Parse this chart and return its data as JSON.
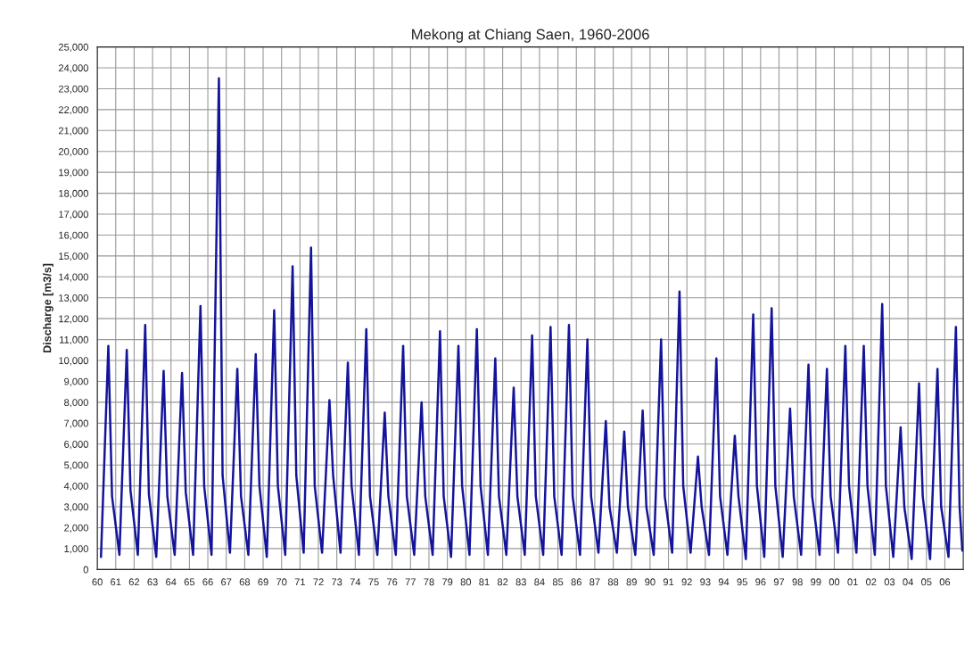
{
  "chart_data": {
    "type": "line",
    "title": "Mekong at Chiang Saen, 1960-2006",
    "ylabel": "Discharge [m3/s]",
    "xlim": [
      1960,
      2007
    ],
    "ylim": [
      0,
      25000
    ],
    "xticks": [
      {
        "value": 1960,
        "label": "60"
      },
      {
        "value": 1961,
        "label": "61"
      },
      {
        "value": 1962,
        "label": "62"
      },
      {
        "value": 1963,
        "label": "63"
      },
      {
        "value": 1964,
        "label": "64"
      },
      {
        "value": 1965,
        "label": "65"
      },
      {
        "value": 1966,
        "label": "66"
      },
      {
        "value": 1967,
        "label": "67"
      },
      {
        "value": 1968,
        "label": "68"
      },
      {
        "value": 1969,
        "label": "69"
      },
      {
        "value": 1970,
        "label": "70"
      },
      {
        "value": 1971,
        "label": "71"
      },
      {
        "value": 1972,
        "label": "72"
      },
      {
        "value": 1973,
        "label": "73"
      },
      {
        "value": 1974,
        "label": "74"
      },
      {
        "value": 1975,
        "label": "75"
      },
      {
        "value": 1976,
        "label": "76"
      },
      {
        "value": 1977,
        "label": "77"
      },
      {
        "value": 1978,
        "label": "78"
      },
      {
        "value": 1979,
        "label": "79"
      },
      {
        "value": 1980,
        "label": "80"
      },
      {
        "value": 1981,
        "label": "81"
      },
      {
        "value": 1982,
        "label": "82"
      },
      {
        "value": 1983,
        "label": "83"
      },
      {
        "value": 1984,
        "label": "84"
      },
      {
        "value": 1985,
        "label": "85"
      },
      {
        "value": 1986,
        "label": "86"
      },
      {
        "value": 1987,
        "label": "87"
      },
      {
        "value": 1988,
        "label": "88"
      },
      {
        "value": 1989,
        "label": "89"
      },
      {
        "value": 1990,
        "label": "90"
      },
      {
        "value": 1991,
        "label": "91"
      },
      {
        "value": 1992,
        "label": "92"
      },
      {
        "value": 1993,
        "label": "93"
      },
      {
        "value": 1994,
        "label": "94"
      },
      {
        "value": 1995,
        "label": "95"
      },
      {
        "value": 1996,
        "label": "96"
      },
      {
        "value": 1997,
        "label": "97"
      },
      {
        "value": 1998,
        "label": "98"
      },
      {
        "value": 1999,
        "label": "99"
      },
      {
        "value": 2000,
        "label": "00"
      },
      {
        "value": 2001,
        "label": "01"
      },
      {
        "value": 2002,
        "label": "02"
      },
      {
        "value": 2003,
        "label": "03"
      },
      {
        "value": 2004,
        "label": "04"
      },
      {
        "value": 2005,
        "label": "05"
      },
      {
        "value": 2006,
        "label": "06"
      }
    ],
    "yticks": [
      {
        "value": 0,
        "label": "0"
      },
      {
        "value": 1000,
        "label": "1,000"
      },
      {
        "value": 2000,
        "label": "2,000"
      },
      {
        "value": 3000,
        "label": "3,000"
      },
      {
        "value": 4000,
        "label": "4,000"
      },
      {
        "value": 5000,
        "label": "5,000"
      },
      {
        "value": 6000,
        "label": "6,000"
      },
      {
        "value": 7000,
        "label": "7,000"
      },
      {
        "value": 8000,
        "label": "8,000"
      },
      {
        "value": 9000,
        "label": "9,000"
      },
      {
        "value": 10000,
        "label": "10,000"
      },
      {
        "value": 11000,
        "label": "11,000"
      },
      {
        "value": 12000,
        "label": "12,000"
      },
      {
        "value": 13000,
        "label": "13,000"
      },
      {
        "value": 14000,
        "label": "14,000"
      },
      {
        "value": 15000,
        "label": "15,000"
      },
      {
        "value": 16000,
        "label": "16,000"
      },
      {
        "value": 17000,
        "label": "17,000"
      },
      {
        "value": 18000,
        "label": "18,000"
      },
      {
        "value": 19000,
        "label": "19,000"
      },
      {
        "value": 20000,
        "label": "20,000"
      },
      {
        "value": 21000,
        "label": "21,000"
      },
      {
        "value": 22000,
        "label": "22,000"
      },
      {
        "value": 23000,
        "label": "23,000"
      },
      {
        "value": 24000,
        "label": "24,000"
      },
      {
        "value": 25000,
        "label": "25,000"
      }
    ],
    "grid": true,
    "marker": "none",
    "line_style": "solid",
    "series": [
      {
        "color": "#14149b",
        "x": [
          1960.2,
          1960.6,
          1960.8,
          1961.2,
          1961.6,
          1961.8,
          1962.2,
          1962.6,
          1962.8,
          1963.2,
          1963.6,
          1963.8,
          1964.2,
          1964.6,
          1964.8,
          1965.2,
          1965.6,
          1965.8,
          1966.2,
          1966.6,
          1966.8,
          1967.2,
          1967.6,
          1967.8,
          1968.2,
          1968.6,
          1968.8,
          1969.2,
          1969.6,
          1969.8,
          1970.2,
          1970.6,
          1970.8,
          1971.2,
          1971.6,
          1971.8,
          1972.2,
          1972.6,
          1972.8,
          1973.2,
          1973.6,
          1973.8,
          1974.2,
          1974.6,
          1974.8,
          1975.2,
          1975.6,
          1975.8,
          1976.2,
          1976.6,
          1976.8,
          1977.2,
          1977.6,
          1977.8,
          1978.2,
          1978.6,
          1978.8,
          1979.2,
          1979.6,
          1979.8,
          1980.2,
          1980.6,
          1980.8,
          1981.2,
          1981.6,
          1981.8,
          1982.2,
          1982.6,
          1982.8,
          1983.2,
          1983.6,
          1983.8,
          1984.2,
          1984.6,
          1984.8,
          1985.2,
          1985.6,
          1985.8,
          1986.2,
          1986.6,
          1986.8,
          1987.2,
          1987.6,
          1987.8,
          1988.2,
          1988.6,
          1988.8,
          1989.2,
          1989.6,
          1989.8,
          1990.2,
          1990.6,
          1990.8,
          1991.2,
          1991.6,
          1991.8,
          1992.2,
          1992.6,
          1992.8,
          1993.2,
          1993.6,
          1993.8,
          1994.2,
          1994.6,
          1994.8,
          1995.2,
          1995.6,
          1995.8,
          1996.2,
          1996.6,
          1996.8,
          1997.2,
          1997.6,
          1997.8,
          1998.2,
          1998.6,
          1998.8,
          1999.2,
          1999.6,
          1999.8,
          2000.2,
          2000.6,
          2000.8,
          2001.2,
          2001.6,
          2001.8,
          2002.2,
          2002.6,
          2002.8,
          2003.2,
          2003.6,
          2003.8,
          2004.2,
          2004.6,
          2004.8,
          2005.2,
          2005.6,
          2005.8,
          2006.2,
          2006.6,
          2006.8,
          2006.95
        ],
        "values": [
          600,
          10700,
          3500,
          700,
          10500,
          3800,
          700,
          11700,
          3600,
          600,
          9500,
          3500,
          700,
          9400,
          3700,
          700,
          12600,
          4000,
          700,
          23500,
          4500,
          800,
          9600,
          3500,
          700,
          10300,
          4000,
          600,
          12400,
          4000,
          700,
          14500,
          4500,
          800,
          15400,
          4000,
          800,
          8100,
          4500,
          800,
          9900,
          4000,
          700,
          11500,
          3500,
          700,
          7500,
          3500,
          700,
          10700,
          3500,
          700,
          8000,
          3500,
          700,
          11400,
          3500,
          600,
          10700,
          4000,
          700,
          11500,
          4000,
          700,
          10100,
          3500,
          700,
          8700,
          3500,
          700,
          11200,
          3500,
          700,
          11600,
          3500,
          700,
          11700,
          3500,
          700,
          11000,
          3500,
          800,
          7100,
          3000,
          800,
          6600,
          3000,
          700,
          7600,
          3000,
          700,
          11000,
          3500,
          800,
          13300,
          4000,
          800,
          5400,
          3000,
          700,
          10100,
          3500,
          700,
          6400,
          3500,
          500,
          12200,
          4000,
          600,
          12500,
          4000,
          600,
          7700,
          3500,
          700,
          9800,
          3500,
          700,
          9600,
          3500,
          800,
          10700,
          4000,
          800,
          10700,
          4000,
          700,
          12700,
          4000,
          600,
          6800,
          3000,
          500,
          8900,
          3500,
          500,
          9600,
          3000,
          600,
          11600,
          3000,
          900
        ]
      }
    ]
  }
}
